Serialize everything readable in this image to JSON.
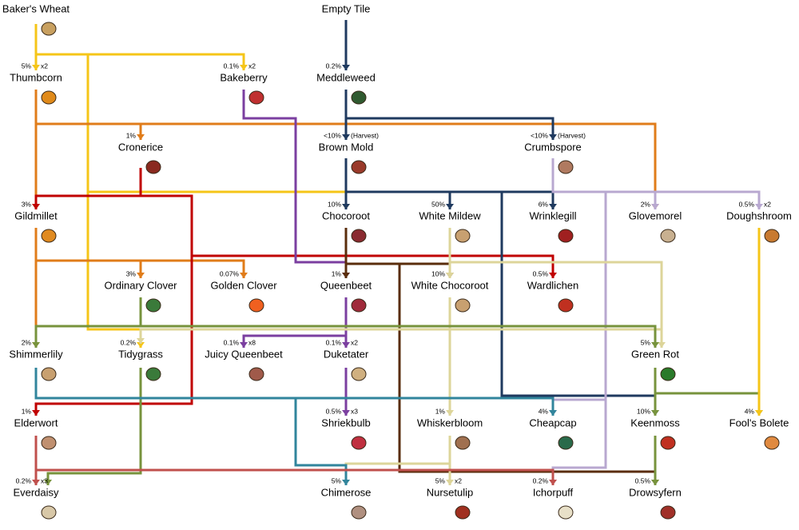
{
  "nodes": [
    {
      "name": "Baker's Wheat"
    },
    {
      "name": "Empty  Tile"
    },
    {
      "name": "Thumbcorn",
      "chance": "5%",
      "multiplier": "x2"
    },
    {
      "name": "Bakeberry",
      "chance": "0.1%",
      "multiplier": "x2"
    },
    {
      "name": "Meddleweed",
      "chance": "0.2%"
    },
    {
      "name": "Cronerice",
      "chance": "1%"
    },
    {
      "name": "Brown Mold",
      "chance": "<10%",
      "note": "(Harvest)"
    },
    {
      "name": "Crumbspore",
      "chance": "<10%",
      "note": "(Harvest)"
    },
    {
      "name": "Gildmillet",
      "chance": "3%"
    },
    {
      "name": "Chocoroot",
      "chance": "10%"
    },
    {
      "name": "White Mildew",
      "chance": "50%"
    },
    {
      "name": "Wrinklegill",
      "chance": "6%"
    },
    {
      "name": "Glovemorel",
      "chance": "2%"
    },
    {
      "name": "Doughshroom",
      "chance": "0.5%",
      "multiplier": "x2"
    },
    {
      "name": "Ordinary Clover",
      "chance": "3%"
    },
    {
      "name": "Golden Clover",
      "chance": "0.07%"
    },
    {
      "name": "Queenbeet",
      "chance": "1%"
    },
    {
      "name": "White Chocoroot",
      "chance": "10%"
    },
    {
      "name": "Wardlichen",
      "chance": "0.5%"
    },
    {
      "name": "Shimmerlily",
      "chance": "2%"
    },
    {
      "name": "Tidygrass",
      "chance": "0.2%"
    },
    {
      "name": "Juicy Queenbeet",
      "chance": "0.1%",
      "multiplier": "x8"
    },
    {
      "name": "Duketater",
      "chance": "0.1%",
      "multiplier": "x2"
    },
    {
      "name": "Green Rot",
      "chance": "5%"
    },
    {
      "name": "Elderwort",
      "chance": "1%"
    },
    {
      "name": "Shriekbulb",
      "chance": "0.5%",
      "multiplier": "x3"
    },
    {
      "name": "Whiskerbloom",
      "chance": "1%"
    },
    {
      "name": "Cheapcap",
      "chance": "4%"
    },
    {
      "name": "Keenmoss",
      "chance": "10%"
    },
    {
      "name": "Fool's Bolete",
      "chance": "4%"
    },
    {
      "name": "Everdaisy",
      "chance": "0.2%",
      "multiplier": "x3"
    },
    {
      "name": "Chimerose",
      "chance": "5%"
    },
    {
      "name": "Nursetulip",
      "chance": "5%",
      "multiplier": "x2"
    },
    {
      "name": "Ichorpuff",
      "chance": "0.2%"
    },
    {
      "name": "Drowsyfern",
      "chance": "0.5%"
    }
  ]
}
